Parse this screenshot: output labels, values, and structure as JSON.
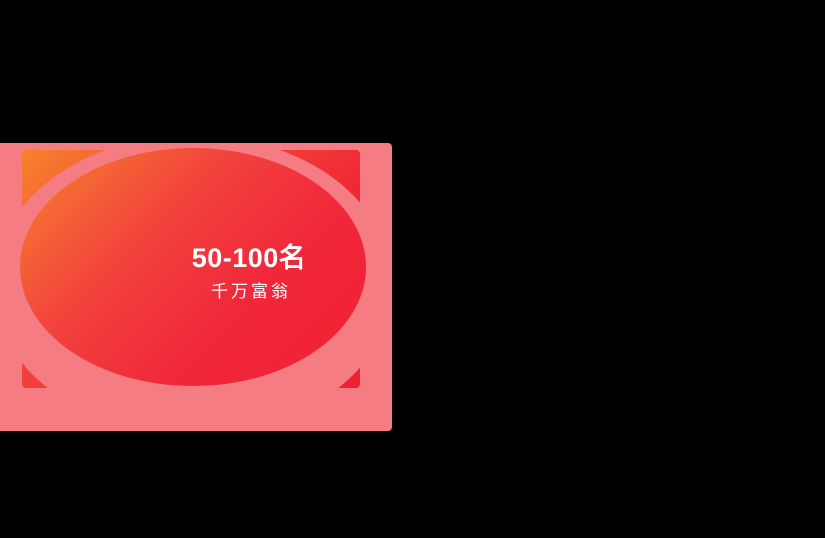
{
  "page": {
    "background_color": "#000000"
  },
  "prize_card": {
    "rank_range": "50-100名",
    "prize_name": "千万富翁",
    "colors": {
      "card_background": "#F67C84",
      "gradient_start_orange": "#F6822C",
      "gradient_end_red": "#EE2130",
      "text": "#FFFFFF"
    }
  }
}
